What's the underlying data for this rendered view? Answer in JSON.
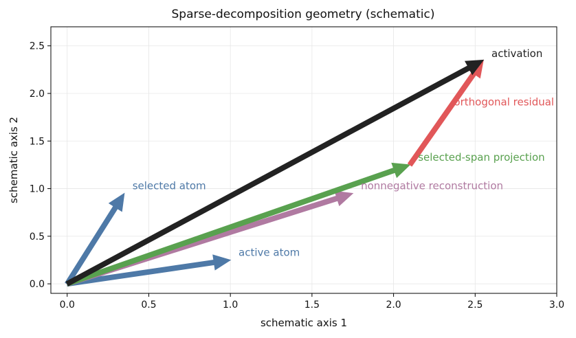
{
  "chart_data": {
    "type": "vector-diagram",
    "title": "Sparse-decomposition geometry (schematic)",
    "xlabel": "schematic axis 1",
    "ylabel": "schematic axis 2",
    "xlim": [
      -0.1,
      3.0
    ],
    "ylim": [
      -0.1,
      2.7
    ],
    "xticks": [
      "0.0",
      "0.5",
      "1.0",
      "1.5",
      "2.0",
      "2.5",
      "3.0"
    ],
    "yticks": [
      "0.0",
      "0.5",
      "1.0",
      "1.5",
      "2.0",
      "2.5"
    ],
    "grid": true,
    "vectors": [
      {
        "label": "selected atom",
        "start": [
          0,
          0
        ],
        "end": [
          0.35,
          0.95
        ],
        "color": "#4e79a7",
        "label_pos": [
          0.4,
          1.03
        ]
      },
      {
        "label": "active atom",
        "start": [
          0,
          0
        ],
        "end": [
          1.0,
          0.25
        ],
        "color": "#4e79a7",
        "label_pos": [
          1.05,
          0.33
        ]
      },
      {
        "label": "nonnegative reconstruction",
        "start": [
          0,
          0
        ],
        "end": [
          1.75,
          0.95
        ],
        "color": "#b07aa1",
        "label_pos": [
          1.8,
          1.03
        ]
      },
      {
        "label": "selected-span projection",
        "start": [
          0,
          0
        ],
        "end": [
          2.1,
          1.25
        ],
        "color": "#59a14f",
        "label_pos": [
          2.15,
          1.33
        ]
      },
      {
        "label": "orthogonal residual",
        "start": [
          2.1,
          1.25
        ],
        "end": [
          2.55,
          2.35
        ],
        "color": "#e15759",
        "label_pos": [
          2.37,
          1.91
        ]
      },
      {
        "label": "activation",
        "start": [
          0,
          0
        ],
        "end": [
          2.55,
          2.35
        ],
        "color": "#222222",
        "label_pos": [
          2.6,
          2.42
        ]
      }
    ]
  }
}
